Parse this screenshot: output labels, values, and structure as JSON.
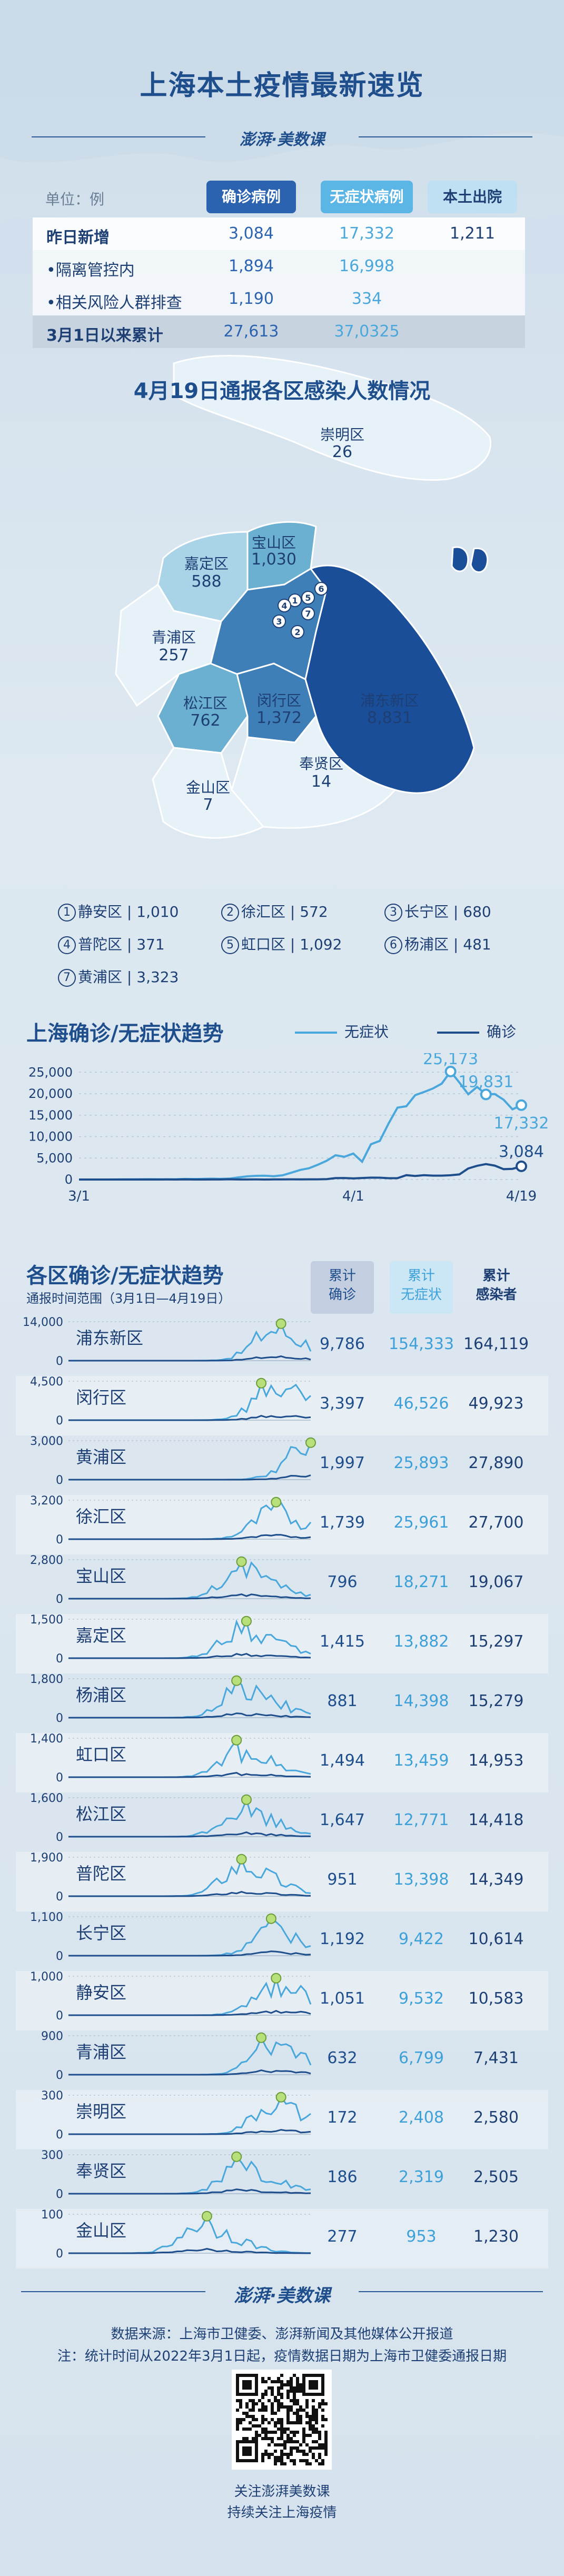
{
  "header": {
    "title": "上海本土疫情最新速览",
    "brand": "澎湃·美数课"
  },
  "stats": {
    "unit_label": "单位：例",
    "columns": [
      "确诊病例",
      "无症状病例",
      "本土出院"
    ],
    "rows": [
      {
        "label": "昨日新增",
        "v1": "3,084",
        "v2": "17,332",
        "v3": "1,211",
        "style": "dark bold"
      },
      {
        "label": "•隔离管控内",
        "v1": "1,894",
        "v2": "16,998",
        "v3": "",
        "style": "light"
      },
      {
        "label": "•相关风险人群排查",
        "v1": "1,190",
        "v2": "334",
        "v3": "",
        "style": "light"
      },
      {
        "label": "3月1日以来累计",
        "v1": "27,613",
        "v2": "37,0325",
        "v3": "",
        "style": "total"
      }
    ]
  },
  "map": {
    "title": "4月19日通报各区感染人数情况",
    "colors": {
      "lv1": "#e6f1f8",
      "lv2": "#a9d3e6",
      "lv3": "#6bb0d0",
      "lv4": "#3f7fb8",
      "lv5": "#1b4e99"
    },
    "labels": [
      {
        "name": "崇明区",
        "value": "26"
      },
      {
        "name": "宝山区",
        "value": "1,030"
      },
      {
        "name": "嘉定区",
        "value": "588"
      },
      {
        "name": "青浦区",
        "value": "257"
      },
      {
        "name": "松江区",
        "value": "762"
      },
      {
        "name": "闵行区",
        "value": "1,372"
      },
      {
        "name": "浦东新区",
        "value": "8,831"
      },
      {
        "name": "奉贤区",
        "value": "14"
      },
      {
        "name": "金山区",
        "value": "7"
      }
    ],
    "markers": [
      "1",
      "2",
      "3",
      "4",
      "5",
      "6",
      "7"
    ]
  },
  "district_list": [
    {
      "num": "1",
      "name": "静安区",
      "value": "1,010"
    },
    {
      "num": "2",
      "name": "徐汇区",
      "value": "572"
    },
    {
      "num": "3",
      "name": "长宁区",
      "value": "680"
    },
    {
      "num": "4",
      "name": "普陀区",
      "value": "371"
    },
    {
      "num": "5",
      "name": "虹口区",
      "value": "1,092"
    },
    {
      "num": "6",
      "name": "杨浦区",
      "value": "481"
    },
    {
      "num": "7",
      "name": "黄浦区",
      "value": "3,323"
    }
  ],
  "trend": {
    "title": "上海确诊/无症状趋势",
    "legend_asym": "无症状",
    "legend_conf": "确诊",
    "colors": {
      "asym": "#4aa7dc",
      "conf": "#1f4e8c"
    }
  },
  "chart_data": {
    "type": "line",
    "x_ticks": [
      "3/1",
      "4/1",
      "4/19"
    ],
    "y_ticks": [
      "0",
      "5,000",
      "10,000",
      "15,000",
      "20,000",
      "25,000"
    ],
    "ylim": [
      0,
      27000
    ],
    "series": [
      {
        "name": "无症状",
        "values": [
          1,
          2,
          1,
          3,
          16,
          45,
          51,
          62,
          76,
          64,
          64,
          78,
          130,
          128,
          150,
          197,
          150,
          203,
          492,
          734,
          865,
          896,
          758,
          977,
          1580,
          2231,
          2631,
          3450,
          4381,
          5656,
          5298,
          6051,
          4144,
          8226,
          9006,
          13086,
          16766,
          17077,
          19660,
          20398,
          21222,
          22348,
          25173,
          22609,
          19872,
          21582,
          19831,
          19923,
          18591,
          16355,
          17332
        ]
      },
      {
        "name": "确诊",
        "values": [
          0,
          0,
          0,
          0,
          0,
          2,
          3,
          3,
          3,
          5,
          11,
          1,
          41,
          5,
          5,
          9,
          8,
          57,
          8,
          17,
          24,
          4,
          29,
          38,
          47,
          29,
          45,
          50,
          96,
          326,
          355,
          260,
          358,
          438,
          425,
          311,
          322,
          1015,
          824,
          1006,
          914,
          908,
          994,
          1189,
          2573,
          3200,
          3590,
          3238,
          2417,
          2494,
          3084
        ]
      }
    ],
    "annotations": [
      "25,173",
      "19,831",
      "17,332",
      "3,084"
    ]
  },
  "districts": {
    "title": "各区确诊/无症状趋势",
    "subtitle": "通报时间范围（3月1日—4月19日）",
    "headers": {
      "h1_a": "累计",
      "h1_b": "确诊",
      "h2_a": "累计",
      "h2_b": "无症状",
      "h3_a": "累计",
      "h3_b": "感染者"
    },
    "rows": [
      {
        "name": "浦东新区",
        "ymax": "14,000",
        "y0": "0",
        "conf": "9,786",
        "asym": "154,333",
        "total": "164,119",
        "peak": 0.88,
        "shape": "late"
      },
      {
        "name": "闵行区",
        "ymax": "4,500",
        "y0": "0",
        "conf": "3,397",
        "asym": "46,526",
        "total": "49,923",
        "peak": 0.86,
        "shape": "late"
      },
      {
        "name": "黄浦区",
        "ymax": "3,000",
        "y0": "0",
        "conf": "1,997",
        "asym": "25,893",
        "total": "27,890",
        "peak": 0.95,
        "shape": "last"
      },
      {
        "name": "徐汇区",
        "ymax": "3,200",
        "y0": "0",
        "conf": "1,739",
        "asym": "25,961",
        "total": "27,700",
        "peak": 0.8,
        "shape": "late"
      },
      {
        "name": "宝山区",
        "ymax": "2,800",
        "y0": "0",
        "conf": "796",
        "asym": "18,271",
        "total": "19,067",
        "peak": 0.76,
        "shape": "mid"
      },
      {
        "name": "嘉定区",
        "ymax": "1,500",
        "y0": "0",
        "conf": "1,415",
        "asym": "13,882",
        "total": "15,297",
        "peak": 0.72,
        "shape": "mid"
      },
      {
        "name": "杨浦区",
        "ymax": "1,800",
        "y0": "0",
        "conf": "881",
        "asym": "14,398",
        "total": "15,279",
        "peak": 0.74,
        "shape": "mid"
      },
      {
        "name": "虹口区",
        "ymax": "1,400",
        "y0": "0",
        "conf": "1,494",
        "asym": "13,459",
        "total": "14,953",
        "peak": 0.76,
        "shape": "mid"
      },
      {
        "name": "松江区",
        "ymax": "1,600",
        "y0": "0",
        "conf": "1,647",
        "asym": "12,771",
        "total": "14,418",
        "peak": 0.72,
        "shape": "mid"
      },
      {
        "name": "普陀区",
        "ymax": "1,900",
        "y0": "0",
        "conf": "951",
        "asym": "13,398",
        "total": "14,349",
        "peak": 0.72,
        "shape": "mid"
      },
      {
        "name": "长宁区",
        "ymax": "1,100",
        "y0": "0",
        "conf": "1,192",
        "asym": "9,422",
        "total": "10,614",
        "peak": 0.8,
        "shape": "late"
      },
      {
        "name": "静安区",
        "ymax": "1,000",
        "y0": "0",
        "conf": "1,051",
        "asym": "9,532",
        "total": "10,583",
        "peak": 0.86,
        "shape": "late"
      },
      {
        "name": "青浦区",
        "ymax": "900",
        "y0": "0",
        "conf": "632",
        "asym": "6,799",
        "total": "7,431",
        "peak": 0.8,
        "shape": "late"
      },
      {
        "name": "崇明区",
        "ymax": "300",
        "y0": "0",
        "conf": "172",
        "asym": "2,408",
        "total": "2,580",
        "peak": 0.86,
        "shape": "late"
      },
      {
        "name": "奉贤区",
        "ymax": "300",
        "y0": "0",
        "conf": "186",
        "asym": "2,319",
        "total": "2,505",
        "peak": 0.76,
        "shape": "mid"
      },
      {
        "name": "金山区",
        "ymax": "100",
        "y0": "0",
        "conf": "277",
        "asym": "953",
        "total": "1,230",
        "peak": 0.6,
        "shape": "early"
      }
    ]
  },
  "footer": {
    "brand": "澎湃·美数课",
    "source_1": "数据来源：上海市卫健委、澎湃新闻及其他媒体公开报道",
    "source_2": "注：统计时间从2022年3月1日起，疫情数据日期为上海市卫健委通报日期",
    "qr_1": "关注澎湃美数课",
    "qr_2": "持续关注上海疫情"
  }
}
